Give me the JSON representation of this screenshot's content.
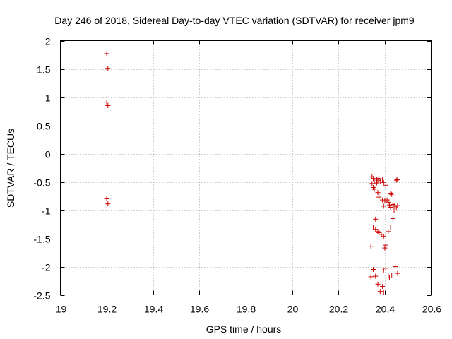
{
  "chart_data": {
    "type": "scatter",
    "title": "Day 246 of 2018, Sidereal Day-to-day VTEC variation (SDTVAR) for receiver jpm9",
    "xlabel": "GPS time / hours",
    "ylabel": "SDTVAR / TECUs",
    "xlim": [
      19,
      20.6
    ],
    "ylim": [
      -2.5,
      2
    ],
    "x_ticks": [
      19,
      19.2,
      19.4,
      19.6,
      19.8,
      20,
      20.2,
      20.4,
      20.6
    ],
    "x_tick_labels": [
      "19",
      "19.2",
      "19.4",
      "19.6",
      "19.8",
      "20",
      "20.2",
      "20.4",
      "20.6"
    ],
    "y_ticks": [
      -2.5,
      -2,
      -1.5,
      -1,
      -0.5,
      0,
      0.5,
      1,
      1.5,
      2
    ],
    "y_tick_labels": [
      "-2.5",
      "-2",
      "-1.5",
      "-1",
      "-0.5",
      "0",
      "0.5",
      "1",
      "1.5",
      "2"
    ],
    "grid": true,
    "marker": "+",
    "color": "#cc0000",
    "series": [
      {
        "name": "SDTVAR",
        "points": [
          [
            19.2,
            1.77
          ],
          [
            19.205,
            1.51
          ],
          [
            19.2,
            0.91
          ],
          [
            19.205,
            0.85
          ],
          [
            19.2,
            -0.8
          ],
          [
            19.205,
            -0.89
          ],
          [
            20.34,
            -1.64
          ],
          [
            20.34,
            -2.18
          ],
          [
            20.345,
            -0.41
          ],
          [
            20.345,
            -0.53
          ],
          [
            20.35,
            -0.44
          ],
          [
            20.35,
            -0.6
          ],
          [
            20.35,
            -1.3
          ],
          [
            20.35,
            -2.05
          ],
          [
            20.355,
            -0.5
          ],
          [
            20.355,
            -0.63
          ],
          [
            20.36,
            -1.16
          ],
          [
            20.36,
            -1.34
          ],
          [
            20.36,
            -2.17
          ],
          [
            20.365,
            -0.45
          ],
          [
            20.365,
            -0.52
          ],
          [
            20.37,
            -0.47
          ],
          [
            20.37,
            -0.69
          ],
          [
            20.37,
            -1.38
          ],
          [
            20.37,
            -2.31
          ],
          [
            20.375,
            -0.44
          ],
          [
            20.375,
            -0.77
          ],
          [
            20.375,
            -1.4
          ],
          [
            20.38,
            -0.5
          ],
          [
            20.38,
            -2.44
          ],
          [
            20.385,
            -1.43
          ],
          [
            20.39,
            -0.45
          ],
          [
            20.39,
            -0.82
          ],
          [
            20.39,
            -2.35
          ],
          [
            20.395,
            -0.51
          ],
          [
            20.395,
            -0.93
          ],
          [
            20.395,
            -1.46
          ],
          [
            20.395,
            -2.06
          ],
          [
            20.395,
            -2.45
          ],
          [
            20.4,
            -0.84
          ],
          [
            20.4,
            -1.67
          ],
          [
            20.405,
            -0.56
          ],
          [
            20.405,
            -1.62
          ],
          [
            20.405,
            -2.03
          ],
          [
            20.41,
            -0.82
          ],
          [
            20.415,
            -0.86
          ],
          [
            20.415,
            -1.38
          ],
          [
            20.415,
            -2.15
          ],
          [
            20.42,
            -0.91
          ],
          [
            20.42,
            -2.2
          ],
          [
            20.425,
            -0.7
          ],
          [
            20.425,
            -0.95
          ],
          [
            20.425,
            -1.3
          ],
          [
            20.43,
            -0.72
          ],
          [
            20.43,
            -2.15
          ],
          [
            20.435,
            -1.15
          ],
          [
            20.435,
            -0.9
          ],
          [
            20.44,
            -0.92
          ],
          [
            20.44,
            -1.0
          ],
          [
            20.445,
            -0.93
          ],
          [
            20.445,
            -2.0
          ],
          [
            20.45,
            -0.47
          ],
          [
            20.45,
            -0.96
          ],
          [
            20.455,
            -0.46
          ],
          [
            20.455,
            -0.92
          ],
          [
            20.455,
            -2.12
          ]
        ]
      }
    ]
  }
}
